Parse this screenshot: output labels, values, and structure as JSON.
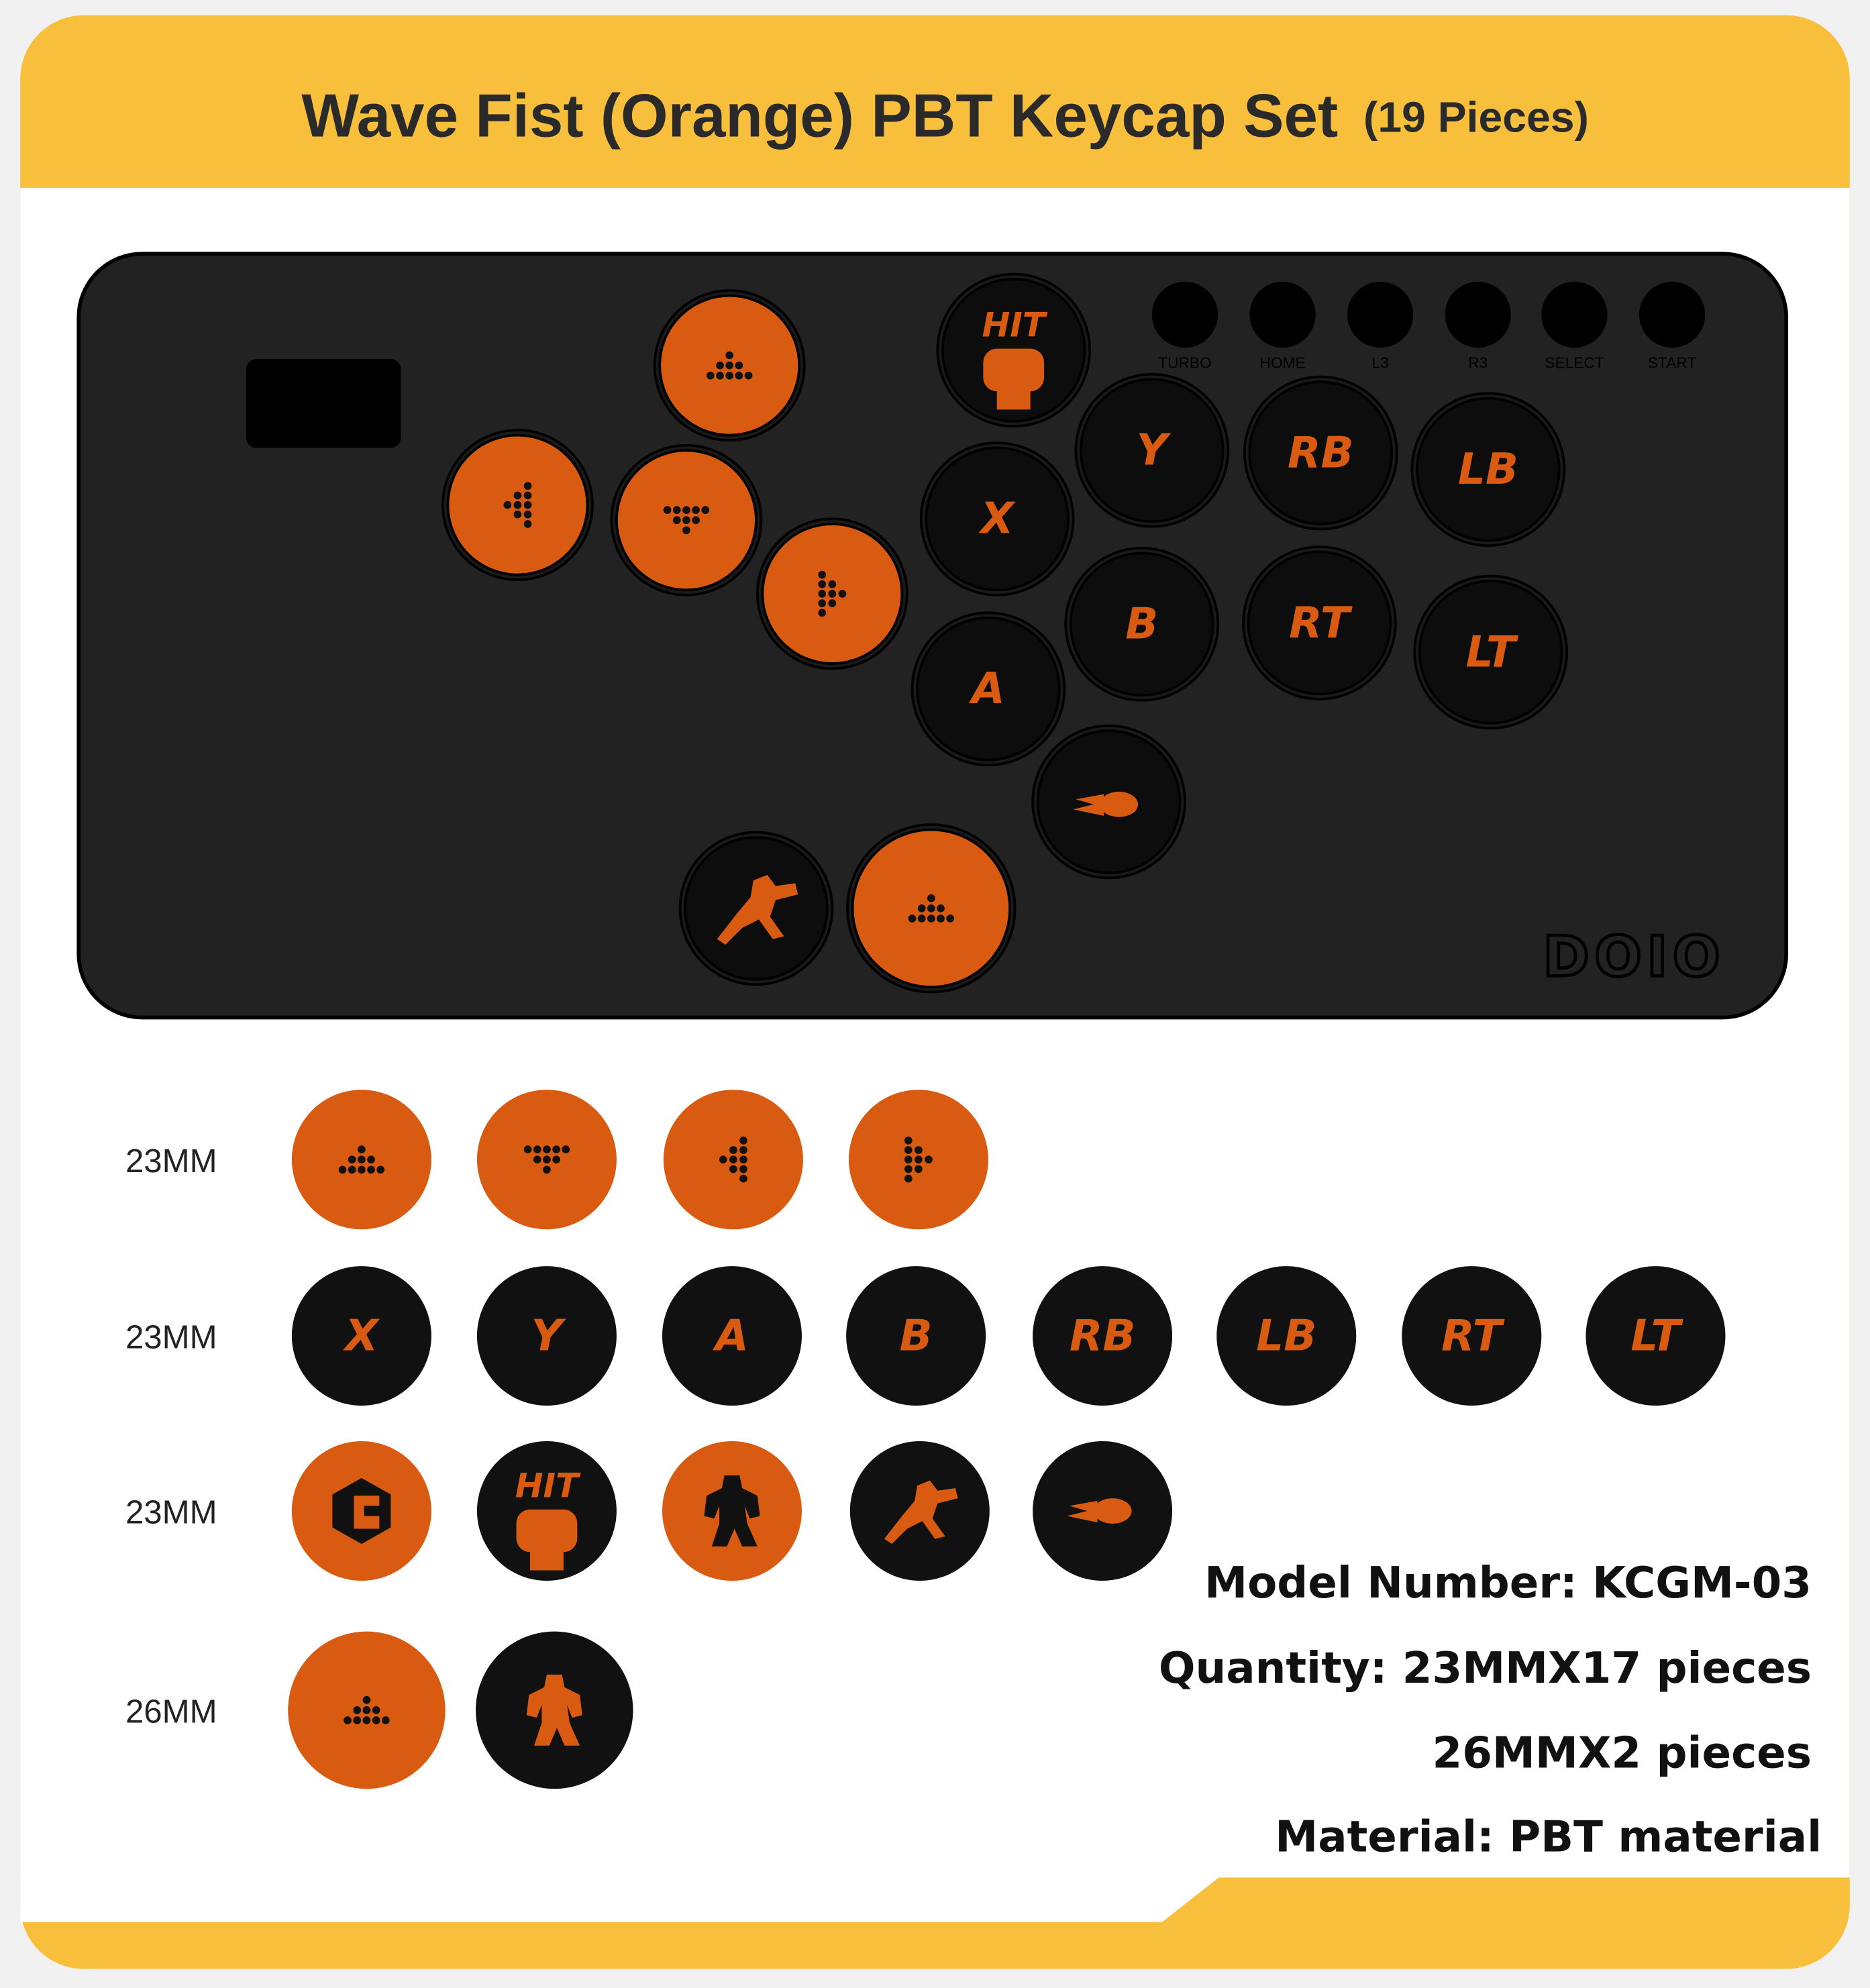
{
  "header": {
    "title": "Wave Fist (Orange)  PBT Keycap Set",
    "subtitle": "(19 Pieces)"
  },
  "controller": {
    "brand": "DOIO",
    "hit_label": "HIT",
    "small_buttons": [
      "TURBO",
      "HOME",
      "L3",
      "R3",
      "SELECT",
      "START"
    ],
    "buttons": [
      "Y",
      "RB",
      "LB",
      "X",
      "B",
      "RT",
      "LT",
      "A"
    ]
  },
  "rows": [
    {
      "size": "23MM"
    },
    {
      "size": "23MM"
    },
    {
      "size": "23MM"
    },
    {
      "size": "26MM"
    }
  ],
  "keycap_labels": [
    "X",
    "Y",
    "A",
    "B",
    "RB",
    "LB",
    "RT",
    "LT"
  ],
  "specs": [
    "Model Number: KCGM-03",
    "Quantity: 23MMX17 pieces",
    "26MMX2 pieces",
    "Material: PBT material"
  ]
}
